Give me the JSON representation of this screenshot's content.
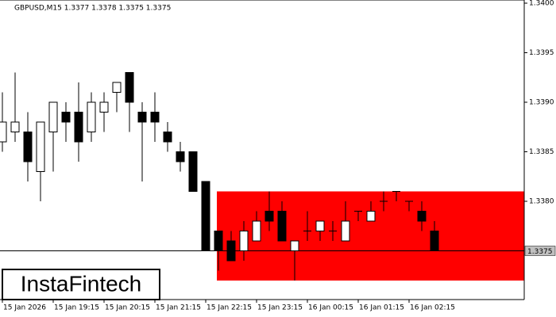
{
  "chart_data": {
    "type": "candlestick",
    "title": "GBPUSD,M15  1.3377 1.3378 1.3375 1.3375",
    "categories": [
      "15 Jan 2026",
      null,
      null,
      null,
      "15 Jan 19:15",
      null,
      null,
      null,
      "15 Jan 20:15",
      null,
      null,
      null,
      "15 Jan 21:15",
      null,
      null,
      null,
      "15 Jan 22:15",
      null,
      null,
      null,
      "15 Jan 23:15",
      null,
      null,
      null,
      "16 Jan 00:15",
      null,
      null,
      null,
      "16 Jan 01:15",
      null,
      null,
      null,
      "16 Jan 02:15",
      null,
      null
    ],
    "open": [
      1.3386,
      1.3387,
      1.3387,
      1.3383,
      1.3387,
      1.3389,
      1.3389,
      1.3387,
      1.3389,
      1.3391,
      1.3393,
      1.3389,
      1.3389,
      1.3387,
      1.3385,
      1.3385,
      1.3382,
      1.3377,
      1.3376,
      1.3375,
      1.3376,
      1.3379,
      1.3379,
      1.3375,
      1.3377,
      1.3377,
      1.3377,
      1.3376,
      1.3379,
      1.3378,
      1.338,
      1.3381,
      1.338,
      1.3379,
      1.3377
    ],
    "high": [
      1.3391,
      1.3393,
      1.3389,
      1.3388,
      1.339,
      1.339,
      1.3392,
      1.3391,
      1.3391,
      1.3392,
      1.3393,
      1.339,
      1.3391,
      1.3388,
      1.3386,
      1.3385,
      1.3382,
      1.3377,
      1.3377,
      1.3378,
      1.3379,
      1.3381,
      1.338,
      1.3376,
      1.3379,
      1.3378,
      1.3378,
      1.338,
      1.3379,
      1.338,
      1.3381,
      1.3381,
      1.338,
      1.338,
      1.3378
    ],
    "low": [
      1.3385,
      1.3386,
      1.3382,
      1.338,
      1.3383,
      1.3386,
      1.3384,
      1.3386,
      1.3387,
      1.3389,
      1.3387,
      1.3382,
      1.3386,
      1.3385,
      1.3383,
      1.3381,
      1.3375,
      1.3373,
      1.3374,
      1.3374,
      1.3376,
      1.3377,
      1.3376,
      1.3372,
      1.3376,
      1.3376,
      1.3376,
      1.3376,
      1.3378,
      1.3378,
      1.3379,
      1.338,
      1.3379,
      1.3377,
      1.3375
    ],
    "close": [
      1.3388,
      1.3388,
      1.3384,
      1.3388,
      1.339,
      1.3388,
      1.3386,
      1.339,
      1.339,
      1.3392,
      1.339,
      1.3388,
      1.3388,
      1.3386,
      1.3384,
      1.3381,
      1.3375,
      1.3375,
      1.3374,
      1.3377,
      1.3378,
      1.3378,
      1.3376,
      1.3376,
      1.3377,
      1.3378,
      1.3377,
      1.3378,
      1.3379,
      1.3379,
      1.338,
      1.3381,
      1.338,
      1.3378,
      1.3375
    ],
    "up_color": "#ffffff",
    "down_color": "#000000",
    "ylim": [
      1.337,
      1.34
    ],
    "yticks": [
      {
        "value": 1.34,
        "label": "1.3400"
      },
      1.3395,
      {
        "value": 1.339,
        "label": "1.3390"
      },
      1.3385,
      {
        "value": 1.338,
        "label": "1.3380"
      }
    ],
    "price_line": {
      "value": 1.3375,
      "label": "1.3375"
    },
    "zone": {
      "top": 1.3381,
      "bottom": 1.3372,
      "color": "#ff0000"
    },
    "watermark": "InstaFintech"
  }
}
